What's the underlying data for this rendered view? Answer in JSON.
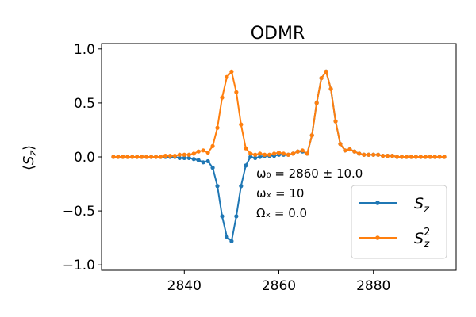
{
  "chart_data": {
    "type": "line",
    "title": "ODMR",
    "xlabel": "",
    "ylabel": "⟨S_z⟩",
    "xlim": [
      2822.5,
      2897.5
    ],
    "ylim": [
      -1.05,
      1.05
    ],
    "xticks": [
      2840,
      2860,
      2880
    ],
    "xtick_labels": [
      "2840",
      "2860",
      "2880"
    ],
    "yticks": [
      1.0,
      0.5,
      0.0,
      -0.5,
      -1.0
    ],
    "ytick_labels": [
      "1.0",
      "0.5",
      "0.0",
      "−0.5",
      "−1.0"
    ],
    "grid": false,
    "legend_position": "lower-right",
    "colors": {
      "sz": "#1f77b4",
      "sz2": "#ff7f0e"
    },
    "x": [
      2825,
      2826,
      2827,
      2828,
      2829,
      2830,
      2831,
      2832,
      2833,
      2834,
      2835,
      2836,
      2837,
      2838,
      2839,
      2840,
      2841,
      2842,
      2843,
      2844,
      2845,
      2846,
      2847,
      2848,
      2849,
      2850,
      2851,
      2852,
      2853,
      2854,
      2855,
      2856,
      2857,
      2858,
      2859,
      2860,
      2861,
      2862,
      2863,
      2864,
      2865,
      2866,
      2867,
      2868,
      2869,
      2870,
      2871,
      2872,
      2873,
      2874,
      2875,
      2876,
      2877,
      2878,
      2879,
      2880,
      2881,
      2882,
      2883,
      2884,
      2885,
      2886,
      2887,
      2888,
      2889,
      2890,
      2891,
      2892,
      2893,
      2894,
      2895
    ],
    "series": [
      {
        "name": "S_z",
        "values": [
          0.0,
          0.0,
          0.0,
          0.0,
          0.0,
          0.0,
          0.0,
          0.0,
          0.0,
          0.0,
          0.0,
          0.0,
          0.0,
          0.0,
          -0.01,
          -0.01,
          -0.01,
          -0.02,
          -0.03,
          -0.05,
          -0.04,
          -0.1,
          -0.27,
          -0.55,
          -0.74,
          -0.78,
          -0.55,
          -0.27,
          -0.08,
          0.0,
          -0.01,
          0.0,
          0.01,
          0.01,
          0.01,
          0.02,
          0.02,
          0.02,
          0.03,
          0.05,
          0.05,
          0.03,
          0.2,
          0.5,
          0.73,
          0.79,
          0.63,
          0.33,
          0.12,
          0.06,
          0.07,
          0.05,
          0.03,
          0.02,
          0.02,
          0.02,
          0.02,
          0.01,
          0.01,
          0.01,
          0.0,
          0.0,
          0.0,
          0.0,
          0.0,
          0.0,
          0.0,
          0.0,
          0.0,
          0.0,
          0.0
        ]
      },
      {
        "name": "S_z^2",
        "values": [
          0.0,
          0.0,
          0.0,
          0.0,
          0.0,
          0.0,
          0.0,
          0.0,
          0.0,
          0.0,
          0.0,
          0.01,
          0.01,
          0.01,
          0.02,
          0.02,
          0.02,
          0.03,
          0.05,
          0.06,
          0.04,
          0.1,
          0.27,
          0.55,
          0.74,
          0.79,
          0.6,
          0.3,
          0.08,
          0.03,
          0.02,
          0.03,
          0.02,
          0.02,
          0.03,
          0.04,
          0.03,
          0.02,
          0.03,
          0.05,
          0.06,
          0.03,
          0.2,
          0.5,
          0.73,
          0.79,
          0.63,
          0.33,
          0.12,
          0.06,
          0.07,
          0.05,
          0.03,
          0.02,
          0.02,
          0.02,
          0.02,
          0.01,
          0.01,
          0.01,
          0.0,
          0.0,
          0.0,
          0.0,
          0.0,
          0.0,
          0.0,
          0.0,
          0.0,
          0.0,
          0.0
        ]
      }
    ],
    "annotations": [
      "ω₀ = 2860 ± 10.0",
      "ωₓ = 10",
      "Ωₓ = 0.0"
    ]
  }
}
